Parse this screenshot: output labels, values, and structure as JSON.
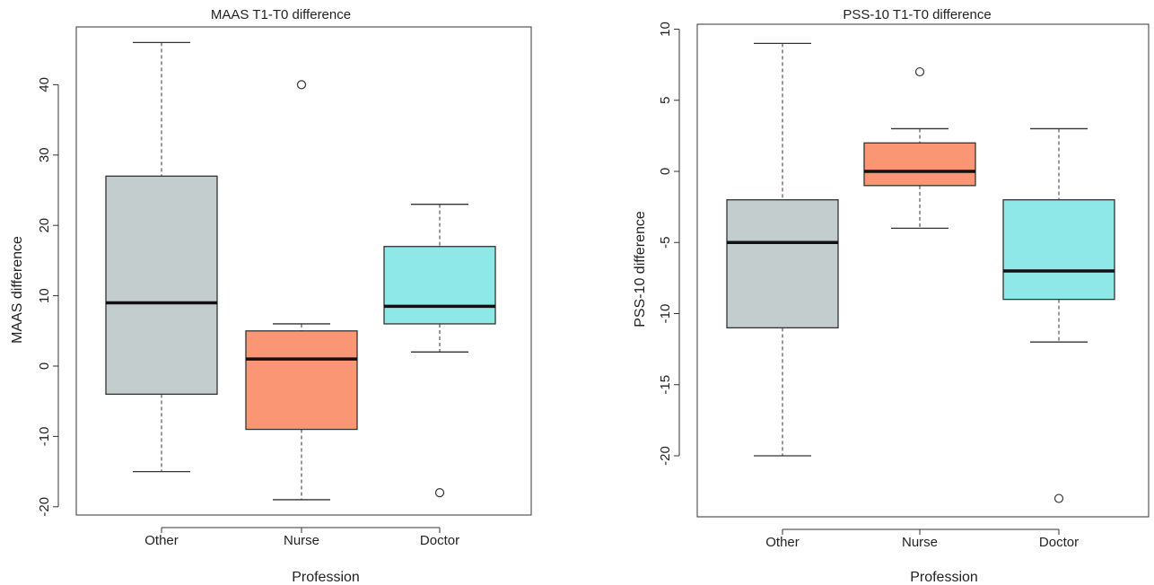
{
  "chart_data": [
    {
      "type": "box",
      "title": "MAAS T1-T0 difference",
      "xlabel": "Profession",
      "ylabel": "MAAS difference",
      "categories": [
        "Other",
        "Nurse",
        "Doctor"
      ],
      "yticks": [
        -20,
        -10,
        0,
        10,
        20,
        30,
        40
      ],
      "ytick_labels": [
        "-20",
        "-10",
        "0",
        "10",
        "20",
        "30",
        "40"
      ],
      "ylim": [
        -21.2,
        47.3
      ],
      "boxes": [
        {
          "category": "Other",
          "whisker_low": -15,
          "q1": -4,
          "median": 9,
          "q3": 27,
          "whisker_high": 46,
          "outliers": [],
          "color": "#c3cdcd"
        },
        {
          "category": "Nurse",
          "whisker_low": -19,
          "q1": -9,
          "median": 1,
          "q3": 5,
          "whisker_high": 6,
          "outliers": [
            40
          ],
          "color": "#fa9673"
        },
        {
          "category": "Doctor",
          "whisker_low": 2,
          "q1": 6,
          "median": 8.5,
          "q3": 17,
          "whisker_high": 23,
          "outliers": [
            -18
          ],
          "color": "#8ee8e8"
        }
      ]
    },
    {
      "type": "box",
      "title": "PSS-10 T1-T0 difference",
      "xlabel": "Profession",
      "ylabel": "PSS-10 difference",
      "categories": [
        "Other",
        "Nurse",
        "Doctor"
      ],
      "yticks": [
        -20,
        -15,
        -10,
        -5,
        0,
        5,
        10
      ],
      "ytick_labels": [
        "-20",
        "-15",
        "-10",
        "-5",
        "0",
        "5",
        "10"
      ],
      "ylim": [
        -24.2,
        10.3
      ],
      "boxes": [
        {
          "category": "Other",
          "whisker_low": -20,
          "q1": -11,
          "median": -5,
          "q3": -2,
          "whisker_high": 9,
          "outliers": [],
          "color": "#c3cdcd"
        },
        {
          "category": "Nurse",
          "whisker_low": -4,
          "q1": -1,
          "median": 0,
          "q3": 2,
          "whisker_high": 3,
          "outliers": [
            7
          ],
          "color": "#fa9673"
        },
        {
          "category": "Doctor",
          "whisker_low": -12,
          "q1": -9,
          "median": -7,
          "q3": -2,
          "whisker_high": 3,
          "outliers": [
            -23
          ],
          "color": "#8ee8e8"
        }
      ]
    }
  ]
}
